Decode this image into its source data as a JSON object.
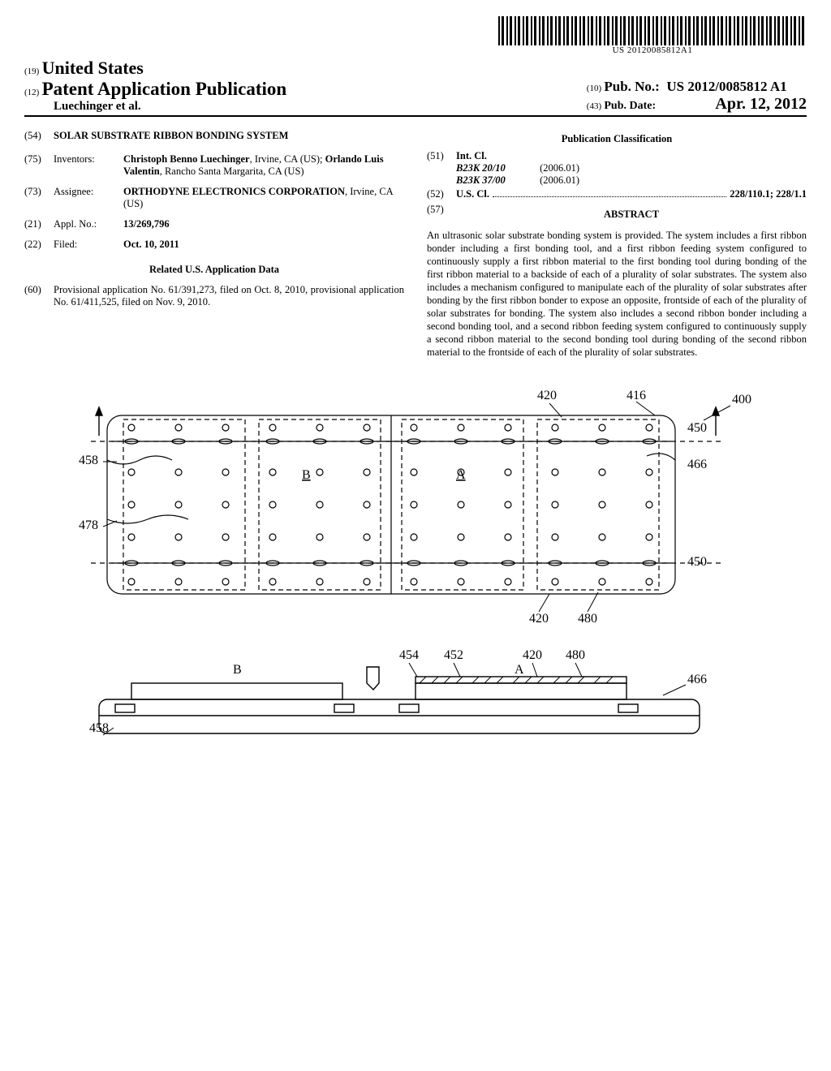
{
  "barcode_text": "US 20120085812A1",
  "header": {
    "country": "United States",
    "country_num": "(19)",
    "doc_type": "Patent Application Publication",
    "doc_type_num": "(12)",
    "authors": "Luechinger et al.",
    "pub_no_num": "(10)",
    "pub_no_label": "Pub. No.:",
    "pub_no": "US 2012/0085812 A1",
    "pub_date_num": "(43)",
    "pub_date_label": "Pub. Date:",
    "pub_date": "Apr. 12, 2012"
  },
  "left": {
    "title_num": "(54)",
    "title": "SOLAR SUBSTRATE RIBBON BONDING SYSTEM",
    "inventors_num": "(75)",
    "inventors_label": "Inventors:",
    "inventors_value": "Christoph Benno Luechinger, Irvine, CA (US); Orlando Luis Valentin, Rancho Santa Margarita, CA (US)",
    "assignee_num": "(73)",
    "assignee_label": "Assignee:",
    "assignee_value": "ORTHODYNE ELECTRONICS CORPORATION, Irvine, CA (US)",
    "appl_num": "(21)",
    "appl_label": "Appl. No.:",
    "appl_value": "13/269,796",
    "filed_num": "(22)",
    "filed_label": "Filed:",
    "filed_value": "Oct. 10, 2011",
    "related_title": "Related U.S. Application Data",
    "related_num": "(60)",
    "related_value": "Provisional application No. 61/391,273, filed on Oct. 8, 2010, provisional application No. 61/411,525, filed on Nov. 9, 2010."
  },
  "right": {
    "classification_title": "Publication Classification",
    "intcl_num": "(51)",
    "intcl_label": "Int. Cl.",
    "intcl": [
      {
        "code": "B23K 20/10",
        "year": "(2006.01)"
      },
      {
        "code": "B23K 37/00",
        "year": "(2006.01)"
      }
    ],
    "uscl_num": "(52)",
    "uscl_label": "U.S. Cl.",
    "uscl_value": "228/110.1; 228/1.1",
    "abstract_num": "(57)",
    "abstract_label": "ABSTRACT",
    "abstract_text": "An ultrasonic solar substrate bonding system is provided. The system includes a first ribbon bonder including a first bonding tool, and a first ribbon feeding system configured to continuously supply a first ribbon material to the first bonding tool during bonding of the first ribbon material to a backside of each of a plurality of solar substrates. The system also includes a mechanism configured to manipulate each of the plurality of solar substrates after bonding by the first ribbon bonder to expose an opposite, frontside of each of the plurality of solar substrates for bonding. The system also includes a second ribbon bonder including a second bonding tool, and a second ribbon feeding system configured to continuously supply a second ribbon material to the second bonding tool during bonding of the second ribbon material to the frontside of each of the plurality of solar substrates."
  },
  "figure": {
    "labels": [
      "420",
      "416",
      "400",
      "450",
      "458",
      "466",
      "478",
      "450",
      "420",
      "480",
      "454",
      "452",
      "420",
      "480",
      "466",
      "458",
      "A",
      "B",
      "A",
      "B"
    ],
    "stroke": "#000000",
    "stroke_width": 1.2,
    "circle_r": 4
  }
}
